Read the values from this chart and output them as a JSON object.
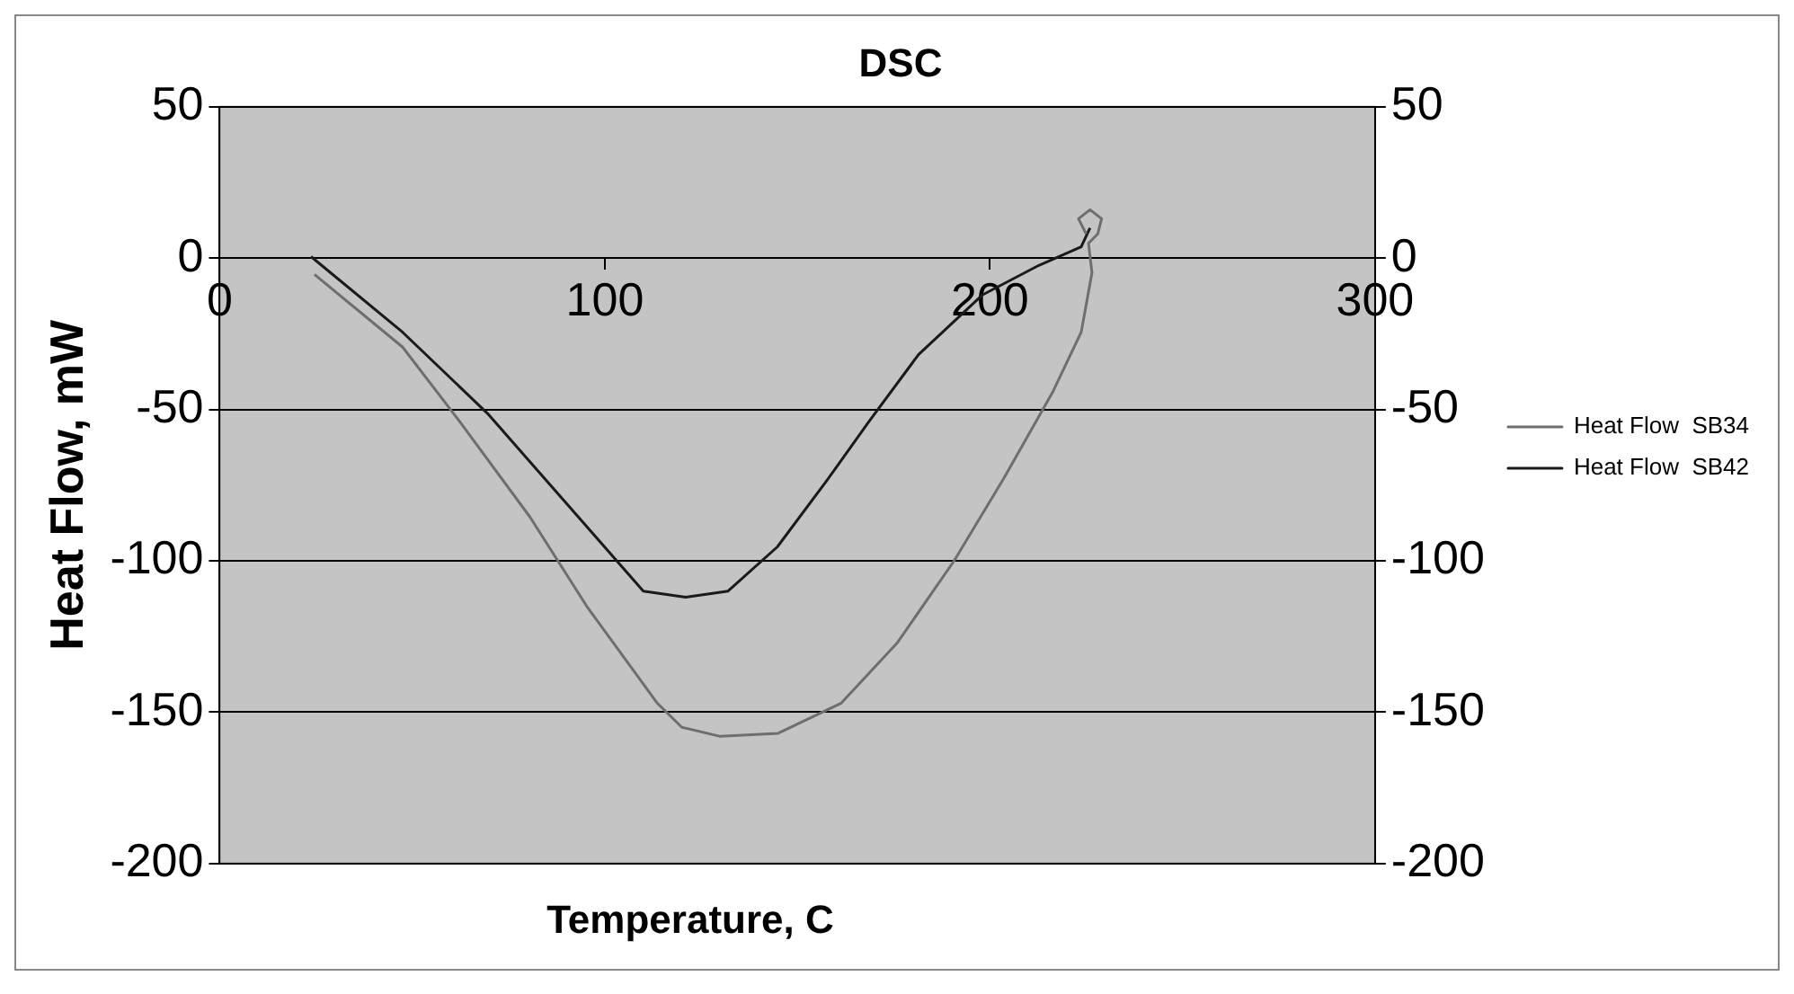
{
  "chart_data": {
    "type": "line",
    "title": "DSC",
    "xlabel": "Temperature, C",
    "ylabel": "Heat Flow, mW",
    "xlim": [
      0,
      300
    ],
    "xticks": [
      0,
      100,
      200,
      300
    ],
    "ylim": [
      -200,
      50
    ],
    "yticks": [
      -200,
      -150,
      -100,
      -50,
      0,
      50
    ],
    "y2lim": [
      -200,
      50
    ],
    "y2ticks": [
      -200,
      -150,
      -100,
      -50,
      0,
      50
    ],
    "grid": "y",
    "legend": "right",
    "series": [
      {
        "name": "Heat Flow  SB34",
        "color": "#6e6e6e",
        "x": [
          24.6,
          47.5,
          62.2,
          80.6,
          95.3,
          113.6,
          120,
          130,
          145,
          161.4,
          176,
          190.7,
          203.5,
          216.4,
          223.7,
          226.5,
          225.6,
          228,
          229,
          226,
          223,
          225
        ],
        "values": [
          -5.4,
          -29.4,
          -53.8,
          -85.6,
          -115,
          -147,
          -155,
          -158,
          -157,
          -147,
          -127,
          -100,
          -73,
          -44,
          -24.5,
          -4.8,
          4.9,
          8,
          13,
          16,
          13,
          8
        ]
      },
      {
        "name": "Heat Flow  SB42",
        "color": "#1a1a1a",
        "x": [
          23.7,
          47.5,
          69.6,
          89.8,
          110,
          121,
          132,
          144.8,
          157.7,
          168.7,
          181.5,
          198,
          212.7,
          223.7,
          226
        ],
        "values": [
          0.5,
          -24.5,
          -51.4,
          -80.7,
          -110,
          -112,
          -110,
          -95.4,
          -73.4,
          -53.8,
          -31.8,
          -12.2,
          -2.4,
          3.7,
          10
        ]
      }
    ]
  }
}
